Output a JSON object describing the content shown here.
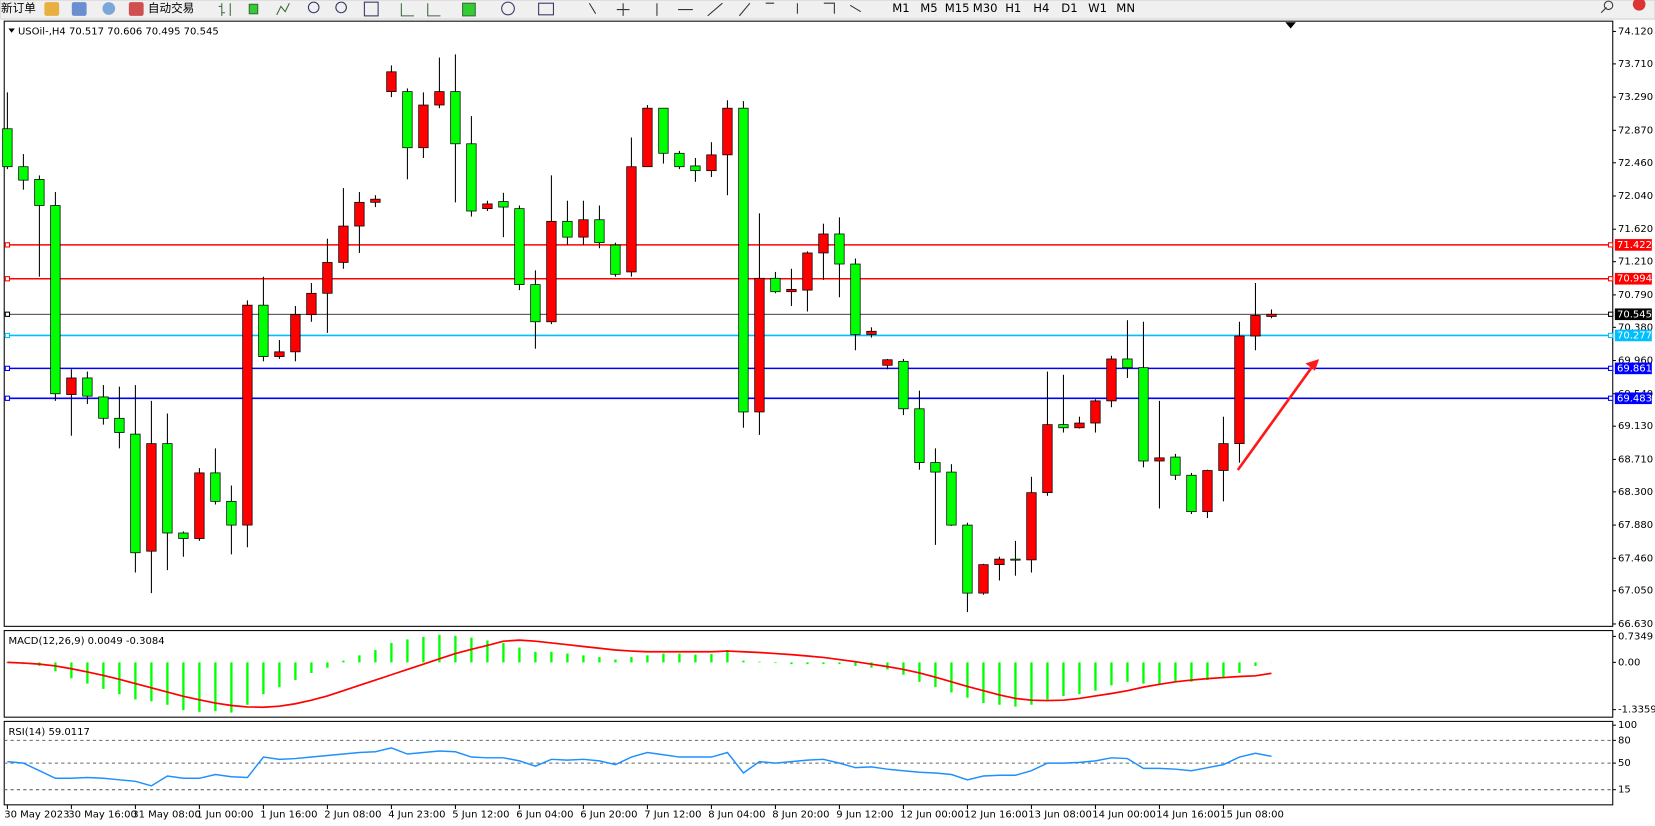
{
  "toolbar": {
    "new_order": "新订单",
    "auto_trading": "自动交易",
    "timeframes": [
      "M1",
      "M5",
      "M15",
      "M30",
      "H1",
      "H4",
      "D1",
      "W1",
      "MN"
    ]
  },
  "chart_data": [
    {
      "type": "candlestick",
      "title": "USOil-,H4 70.517 70.606 70.495 70.545",
      "categories": [
        "30 May 2023",
        null,
        null,
        null,
        "30 May 16:00",
        null,
        null,
        null,
        "31 May 08:00",
        null,
        null,
        null,
        "1 Jun 00:00",
        null,
        null,
        null,
        "1 Jun 16:00",
        null,
        null,
        null,
        "2 Jun 08:00",
        null,
        null,
        null,
        "4 Jun 23:00",
        null,
        null,
        null,
        "5 Jun 12:00",
        null,
        null,
        null,
        "6 Jun 04:00",
        null,
        null,
        null,
        "6 Jun 20:00",
        null,
        null,
        null,
        "7 Jun 12:00",
        null,
        null,
        null,
        "8 Jun 04:00",
        null,
        null,
        null,
        "8 Jun 20:00",
        null,
        null,
        null,
        "9 Jun 12:00",
        null,
        null,
        null,
        "12 Jun 00:00",
        null,
        null,
        null,
        "12 Jun 16:00",
        null,
        null,
        null,
        "13 Jun 08:00",
        null,
        null,
        null,
        "14 Jun 00:00",
        null,
        null,
        null,
        "14 Jun 16:00",
        null,
        null,
        null,
        "15 Jun 08:00",
        null,
        null,
        null
      ],
      "open": [
        72.89,
        72.41,
        72.25,
        71.92,
        69.53,
        69.74,
        69.5,
        69.23,
        69.03,
        67.55,
        68.91,
        67.78,
        67.71,
        68.54,
        68.18,
        67.88,
        70.66,
        70.01,
        70.07,
        70.54,
        70.81,
        71.2,
        71.66,
        71.96,
        73.36,
        73.36,
        72.65,
        73.19,
        73.36,
        72.7,
        71.88,
        71.97,
        71.88,
        70.92,
        70.45,
        71.72,
        71.52,
        71.74,
        71.42,
        71.08,
        72.41,
        73.15,
        72.58,
        72.42,
        72.36,
        72.56,
        73.15,
        69.31,
        71.0,
        70.83,
        70.85,
        71.32,
        71.56,
        71.18,
        70.29,
        69.9,
        69.95,
        69.35,
        68.67,
        68.55,
        67.88,
        67.02,
        67.38,
        67.45,
        67.44,
        68.29,
        69.15,
        69.11,
        69.17,
        69.45,
        69.98,
        69.87,
        68.69,
        68.74,
        68.51,
        68.05,
        68.57,
        68.91,
        70.27,
        70.517
      ],
      "high": [
        73.35,
        72.57,
        72.3,
        72.09,
        69.85,
        69.82,
        69.65,
        69.63,
        69.65,
        69.45,
        69.29,
        67.8,
        68.6,
        68.85,
        68.38,
        70.72,
        71.02,
        70.22,
        70.65,
        70.94,
        71.5,
        72.14,
        72.09,
        72.05,
        73.69,
        73.4,
        73.35,
        73.79,
        73.83,
        73.05,
        71.98,
        72.08,
        71.92,
        71.1,
        72.3,
        71.98,
        71.98,
        71.92,
        71.45,
        72.78,
        73.19,
        73.15,
        72.61,
        72.52,
        72.72,
        73.25,
        73.24,
        71.82,
        71.08,
        71.12,
        71.34,
        71.69,
        71.77,
        71.25,
        70.38,
        69.98,
        69.98,
        69.58,
        68.85,
        68.65,
        67.91,
        67.39,
        67.48,
        67.68,
        68.49,
        69.82,
        69.78,
        69.25,
        69.47,
        70.02,
        70.47,
        70.45,
        69.45,
        68.78,
        68.54,
        68.58,
        69.25,
        70.45,
        70.94,
        70.606
      ],
      "low": [
        72.38,
        72.12,
        71.02,
        69.45,
        69.01,
        69.41,
        69.15,
        68.85,
        67.28,
        67.02,
        67.31,
        67.48,
        67.68,
        68.14,
        67.51,
        67.6,
        69.95,
        69.98,
        69.95,
        70.45,
        70.31,
        71.12,
        71.32,
        71.9,
        73.29,
        72.25,
        72.52,
        73.15,
        71.96,
        71.78,
        71.85,
        71.52,
        70.85,
        70.11,
        70.42,
        71.42,
        71.42,
        71.38,
        71.02,
        71.02,
        72.41,
        72.45,
        72.38,
        72.22,
        72.28,
        72.05,
        69.11,
        69.02,
        70.81,
        70.65,
        70.58,
        70.98,
        70.76,
        70.09,
        70.25,
        69.85,
        69.27,
        68.58,
        67.63,
        67.87,
        66.78,
        67.0,
        67.18,
        67.24,
        67.28,
        68.25,
        69.05,
        69.1,
        69.05,
        69.37,
        69.74,
        68.61,
        68.09,
        68.45,
        68.02,
        67.97,
        68.18,
        68.67,
        70.09,
        70.495
      ],
      "close": [
        72.41,
        72.24,
        71.92,
        69.54,
        69.74,
        69.51,
        69.23,
        69.05,
        67.53,
        68.91,
        67.78,
        67.71,
        68.54,
        68.18,
        67.88,
        70.66,
        70.01,
        70.07,
        70.54,
        70.81,
        71.2,
        71.66,
        71.96,
        72.0,
        73.61,
        72.65,
        73.19,
        73.36,
        72.7,
        71.85,
        71.94,
        71.9,
        70.92,
        70.45,
        71.72,
        71.52,
        71.74,
        71.45,
        71.05,
        72.41,
        73.15,
        72.58,
        72.41,
        72.36,
        72.56,
        73.15,
        69.31,
        71.0,
        70.83,
        70.86,
        71.32,
        71.56,
        71.18,
        70.29,
        70.33,
        69.97,
        69.35,
        68.67,
        68.55,
        67.88,
        67.02,
        67.38,
        67.45,
        67.44,
        68.29,
        69.15,
        69.11,
        69.17,
        69.45,
        69.98,
        69.87,
        68.69,
        68.73,
        68.51,
        68.05,
        68.57,
        68.91,
        70.27,
        70.53,
        70.545
      ],
      "up_color": "#ff0000",
      "down_color": "#00ff00",
      "ylim": [
        66.6,
        74.25
      ],
      "yticks": [
        {
          "value": 74.12,
          "label": "74.120"
        },
        {
          "value": 73.71,
          "label": "73.710"
        },
        {
          "value": 73.29,
          "label": "73.290"
        },
        {
          "value": 72.87,
          "label": "72.870"
        },
        {
          "value": 72.46,
          "label": "72.460"
        },
        {
          "value": 72.04,
          "label": "72.040"
        },
        {
          "value": 71.62,
          "label": "71.620"
        },
        {
          "value": 71.21,
          "label": "71.210"
        },
        {
          "value": 70.79,
          "label": "70.790"
        },
        {
          "value": 70.38,
          "label": "70.380"
        },
        {
          "value": 69.96,
          "label": "69.960"
        },
        {
          "value": 69.54,
          "label": "69.540"
        },
        {
          "value": 69.13,
          "label": "69.130"
        },
        {
          "value": 68.71,
          "label": "68.710"
        },
        {
          "value": 68.3,
          "label": "68.300"
        },
        {
          "value": 67.88,
          "label": "67.880"
        },
        {
          "value": 67.46,
          "label": "67.460"
        },
        {
          "value": 67.05,
          "label": "67.050"
        },
        {
          "value": 66.63,
          "label": "66.630"
        }
      ],
      "hlines": [
        {
          "value": 71.422,
          "color": "#ff0000"
        },
        {
          "value": 70.994,
          "color": "#ff0000"
        },
        {
          "value": 70.545,
          "color": "#000000"
        },
        {
          "value": 70.277,
          "color": "#00bfff"
        },
        {
          "value": 69.861,
          "color": "#0000ff"
        },
        {
          "value": 69.483,
          "color": "#0000ff"
        }
      ]
    },
    {
      "type": "macd",
      "title": "MACD(12,26,9) 0.0049 -0.3084",
      "histogram": [
        -0.02,
        -0.05,
        -0.1,
        -0.25,
        -0.45,
        -0.6,
        -0.75,
        -0.9,
        -1.05,
        -1.1,
        -1.2,
        -1.35,
        -1.4,
        -1.38,
        -1.42,
        -1.2,
        -0.9,
        -0.7,
        -0.5,
        -0.3,
        -0.15,
        0.05,
        0.2,
        0.35,
        0.55,
        0.65,
        0.72,
        0.78,
        0.75,
        0.7,
        0.62,
        0.55,
        0.42,
        0.3,
        0.3,
        0.25,
        0.2,
        0.15,
        0.08,
        0.15,
        0.2,
        0.25,
        0.25,
        0.22,
        0.24,
        0.35,
        0.05,
        0.02,
        -0.02,
        -0.05,
        -0.05,
        -0.05,
        -0.05,
        -0.1,
        -0.15,
        -0.2,
        -0.35,
        -0.55,
        -0.7,
        -0.85,
        -1.0,
        -1.15,
        -1.2,
        -1.25,
        -1.2,
        -1.05,
        -0.95,
        -0.9,
        -0.8,
        -0.65,
        -0.55,
        -0.6,
        -0.6,
        -0.55,
        -0.55,
        -0.5,
        -0.45,
        -0.3,
        -0.1,
        0.0049
      ],
      "signal": [
        0,
        -0.02,
        -0.05,
        -0.1,
        -0.18,
        -0.27,
        -0.37,
        -0.48,
        -0.6,
        -0.72,
        -0.84,
        -0.96,
        -1.06,
        -1.15,
        -1.22,
        -1.26,
        -1.27,
        -1.24,
        -1.17,
        -1.07,
        -0.95,
        -0.8,
        -0.65,
        -0.5,
        -0.35,
        -0.2,
        -0.05,
        0.1,
        0.25,
        0.37,
        0.48,
        0.6,
        0.63,
        0.6,
        0.55,
        0.5,
        0.45,
        0.4,
        0.35,
        0.32,
        0.3,
        0.3,
        0.3,
        0.3,
        0.3,
        0.32,
        0.3,
        0.28,
        0.25,
        0.22,
        0.18,
        0.14,
        0.08,
        0.02,
        -0.05,
        -0.12,
        -0.2,
        -0.3,
        -0.42,
        -0.55,
        -0.68,
        -0.8,
        -0.92,
        -1.02,
        -1.07,
        -1.08,
        -1.07,
        -1.02,
        -0.95,
        -0.88,
        -0.8,
        -0.7,
        -0.62,
        -0.55,
        -0.5,
        -0.46,
        -0.43,
        -0.4,
        -0.38,
        -0.3084
      ],
      "histogram_color": "#00ff00",
      "signal_color": "#ff0000",
      "ylim": [
        -1.55,
        0.9
      ],
      "yticks": [
        0.7349,
        {
          "value": 0,
          "label": "0.00"
        },
        -1.3359
      ]
    },
    {
      "type": "line",
      "title": "RSI(14) 59.0117",
      "values": [
        52,
        50,
        40,
        30,
        30,
        31,
        30,
        28,
        26,
        20,
        33,
        30,
        30,
        35,
        32,
        31,
        58,
        55,
        56,
        58,
        60,
        62,
        64,
        65,
        70,
        62,
        64,
        66,
        65,
        58,
        57,
        57,
        53,
        46,
        55,
        54,
        55,
        53,
        48,
        58,
        64,
        61,
        58,
        58,
        58,
        64,
        37,
        52,
        50,
        52,
        54,
        55,
        50,
        44,
        45,
        42,
        40,
        38,
        37,
        35,
        28,
        33,
        34,
        34,
        40,
        50,
        50,
        51,
        53,
        57,
        56,
        43,
        43,
        42,
        40,
        44,
        48,
        58,
        63,
        59.0117
      ],
      "color": "#1e90ff",
      "ylim": [
        -5,
        105
      ],
      "yticks": [
        100,
        80,
        50,
        15
      ],
      "dashed_levels": [
        80,
        50,
        15
      ]
    }
  ]
}
